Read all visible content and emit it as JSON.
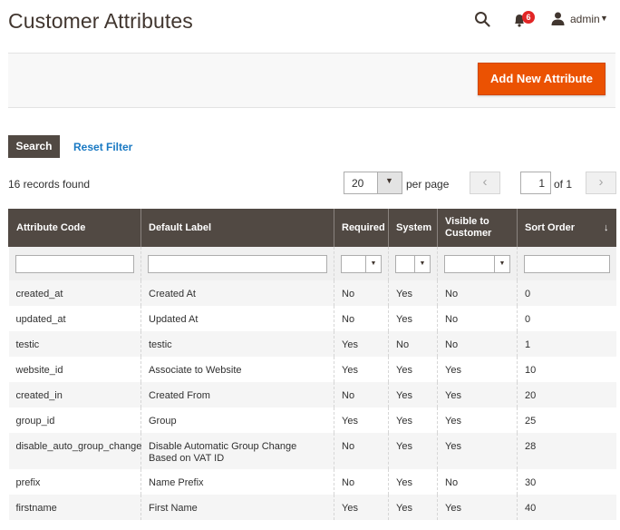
{
  "page": {
    "title": "Customer Attributes"
  },
  "header": {
    "notification_count": "6",
    "user_name": "admin"
  },
  "actions": {
    "add_new_label": "Add New Attribute"
  },
  "toolbar": {
    "search_label": "Search",
    "reset_label": "Reset Filter",
    "records_found": "16 records found",
    "per_page_value": "20",
    "per_page_label": "per page",
    "current_page": "1",
    "page_of": "of 1"
  },
  "grid": {
    "columns": [
      "Attribute Code",
      "Default Label",
      "Required",
      "System",
      "Visible to Customer",
      "Sort Order"
    ],
    "rows": [
      [
        "created_at",
        "Created At",
        "No",
        "Yes",
        "No",
        "0"
      ],
      [
        "updated_at",
        "Updated At",
        "No",
        "Yes",
        "No",
        "0"
      ],
      [
        "testic",
        "testic",
        "Yes",
        "No",
        "No",
        "1"
      ],
      [
        "website_id",
        "Associate to Website",
        "Yes",
        "Yes",
        "Yes",
        "10"
      ],
      [
        "created_in",
        "Created From",
        "No",
        "Yes",
        "Yes",
        "20"
      ],
      [
        "group_id",
        "Group",
        "Yes",
        "Yes",
        "Yes",
        "25"
      ],
      [
        "disable_auto_group_change",
        "Disable Automatic Group Change Based on VAT ID",
        "No",
        "Yes",
        "Yes",
        "28"
      ],
      [
        "prefix",
        "Name Prefix",
        "No",
        "Yes",
        "No",
        "30"
      ],
      [
        "firstname",
        "First Name",
        "Yes",
        "Yes",
        "Yes",
        "40"
      ]
    ]
  }
}
